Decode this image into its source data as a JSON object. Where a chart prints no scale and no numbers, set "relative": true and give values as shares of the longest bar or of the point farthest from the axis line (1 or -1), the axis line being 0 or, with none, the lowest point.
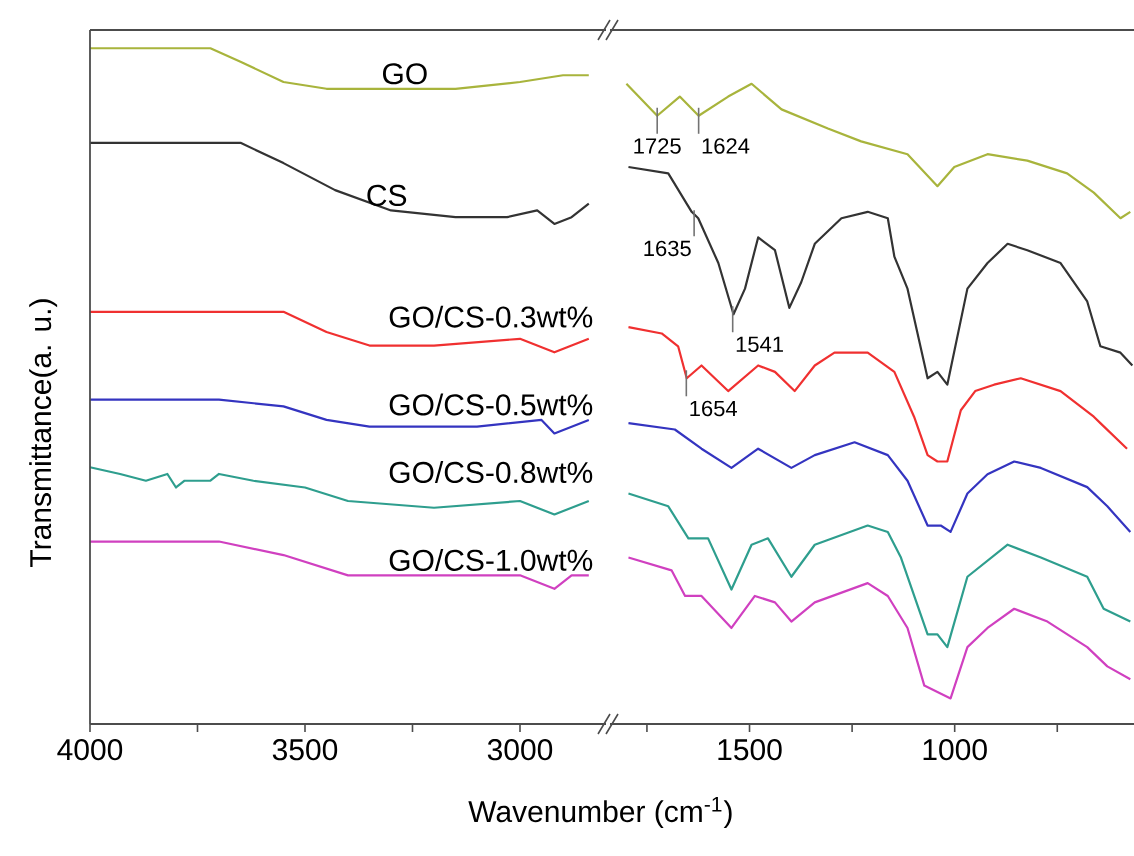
{
  "chart_data": [
    {
      "type": "line",
      "relative": true,
      "tick_labels": "x",
      "ylabel": "Transmittance(a. u.)",
      "xlabel": "Wavenumber (cm$^{-1}$)",
      "xlim": [
        4000,
        2800
      ],
      "xticks": [
        4000,
        {
          "value": 3750,
          "label": null
        },
        3500,
        {
          "value": 3250,
          "label": null
        },
        3000
      ],
      "series": [
        {
          "name": "GO",
          "color": "#a8b43c",
          "x": [
            4000,
            3850,
            3720,
            3650,
            3550,
            3450,
            3300,
            3150,
            3000,
            2900,
            2840
          ],
          "values": [
            1,
            1,
            1,
            0.98,
            0.95,
            0.94,
            0.94,
            0.94,
            0.95,
            0.96,
            0.96
          ]
        },
        {
          "name": "CS",
          "color": "#333333",
          "x": [
            4000,
            3800,
            3650,
            3550,
            3430,
            3300,
            3150,
            3030,
            2960,
            2920,
            2880,
            2840
          ],
          "values": [
            0.86,
            0.86,
            0.86,
            0.83,
            0.79,
            0.76,
            0.75,
            0.75,
            0.76,
            0.74,
            0.75,
            0.77
          ]
        },
        {
          "name": "GO/CS-0.3wt%",
          "color": "#f03030",
          "x": [
            4000,
            3700,
            3550,
            3450,
            3350,
            3200,
            3000,
            2920,
            2880,
            2840
          ],
          "values": [
            0.61,
            0.61,
            0.61,
            0.58,
            0.56,
            0.56,
            0.57,
            0.55,
            0.56,
            0.57
          ]
        },
        {
          "name": "GO/CS-0.5wt%",
          "color": "#3434c0",
          "x": [
            4000,
            3700,
            3550,
            3450,
            3350,
            3100,
            2950,
            2920,
            2880,
            2840
          ],
          "values": [
            0.48,
            0.48,
            0.47,
            0.45,
            0.44,
            0.44,
            0.45,
            0.43,
            0.44,
            0.45
          ]
        },
        {
          "name": "GO/CS-0.8wt%",
          "color": "#2e9e8e",
          "x": [
            4000,
            3930,
            3870,
            3820,
            3800,
            3780,
            3720,
            3700,
            3620,
            3500,
            3400,
            3200,
            3000,
            2920,
            2880,
            2840
          ],
          "values": [
            0.38,
            0.37,
            0.36,
            0.37,
            0.35,
            0.36,
            0.36,
            0.37,
            0.36,
            0.35,
            0.33,
            0.32,
            0.33,
            0.31,
            0.32,
            0.33
          ]
        },
        {
          "name": "GO/CS-1.0wt%",
          "color": "#d040c0",
          "x": [
            4000,
            3700,
            3550,
            3400,
            3200,
            3000,
            2920,
            2880,
            2840
          ],
          "values": [
            0.27,
            0.27,
            0.25,
            0.22,
            0.22,
            0.22,
            0.2,
            0.22,
            0.22
          ]
        }
      ]
    },
    {
      "type": "line",
      "relative": true,
      "tick_labels": "x",
      "xlim": [
        1840,
        563
      ],
      "xticks": [
        {
          "value": 1750,
          "label": null
        },
        1500,
        {
          "value": 1250,
          "label": null
        },
        1000,
        {
          "value": 750,
          "label": null
        }
      ],
      "annotations": [
        {
          "text": "1725",
          "x": 1725,
          "y": 0.95
        },
        {
          "text": "1624",
          "x": 1624,
          "y": 0.95
        },
        {
          "text": "1635",
          "x": 1635,
          "y": 0.79
        },
        {
          "text": "1541",
          "x": 1541,
          "y": 0.64
        },
        {
          "text": "1654",
          "x": 1654,
          "y": 0.54
        }
      ],
      "series": [
        {
          "color": "#a8b43c",
          "x": [
            1800,
            1725,
            1670,
            1624,
            1552,
            1495,
            1422,
            1309,
            1228,
            1115,
            1042,
            1001,
            920,
            823,
            726,
            661,
            596,
            572
          ],
          "values": [
            1,
            0.95,
            0.98,
            0.95,
            0.98,
            1,
            0.96,
            0.93,
            0.91,
            0.89,
            0.84,
            0.87,
            0.89,
            0.88,
            0.86,
            0.83,
            0.79,
            0.8
          ]
        },
        {
          "color": "#333333",
          "x": [
            1795,
            1698,
            1641,
            1625,
            1576,
            1539,
            1511,
            1479,
            1438,
            1403,
            1374,
            1341,
            1276,
            1212,
            1163,
            1147,
            1115,
            1066,
            1042,
            1018,
            969,
            920,
            871,
            823,
            742,
            677,
            645,
            596,
            567
          ],
          "values": [
            0.87,
            0.86,
            0.8,
            0.79,
            0.72,
            0.64,
            0.68,
            0.76,
            0.74,
            0.65,
            0.69,
            0.75,
            0.79,
            0.8,
            0.79,
            0.73,
            0.68,
            0.54,
            0.55,
            0.53,
            0.68,
            0.72,
            0.75,
            0.74,
            0.72,
            0.66,
            0.59,
            0.58,
            0.56
          ]
        },
        {
          "color": "#f03030",
          "x": [
            1795,
            1714,
            1674,
            1653,
            1617,
            1552,
            1479,
            1438,
            1390,
            1341,
            1293,
            1212,
            1147,
            1099,
            1066,
            1042,
            1018,
            985,
            950,
            904,
            839,
            742,
            661,
            645,
            580
          ],
          "values": [
            0.62,
            0.61,
            0.59,
            0.54,
            0.56,
            0.52,
            0.56,
            0.55,
            0.52,
            0.56,
            0.58,
            0.58,
            0.55,
            0.48,
            0.42,
            0.41,
            0.41,
            0.49,
            0.52,
            0.53,
            0.54,
            0.52,
            0.48,
            0.47,
            0.43
          ]
        },
        {
          "color": "#3434c0",
          "x": [
            1795,
            1682,
            1617,
            1544,
            1479,
            1398,
            1341,
            1244,
            1163,
            1115,
            1066,
            1034,
            1010,
            969,
            920,
            855,
            790,
            677,
            628,
            572
          ],
          "values": [
            0.47,
            0.46,
            0.43,
            0.4,
            0.43,
            0.4,
            0.42,
            0.44,
            0.42,
            0.38,
            0.31,
            0.31,
            0.3,
            0.36,
            0.39,
            0.41,
            0.4,
            0.37,
            0.34,
            0.3
          ]
        },
        {
          "color": "#2e9e8e",
          "x": [
            1795,
            1698,
            1649,
            1601,
            1544,
            1495,
            1455,
            1398,
            1341,
            1212,
            1163,
            1131,
            1066,
            1042,
            1018,
            969,
            871,
            790,
            677,
            637,
            572
          ],
          "values": [
            0.36,
            0.34,
            0.29,
            0.29,
            0.21,
            0.28,
            0.29,
            0.23,
            0.28,
            0.31,
            0.3,
            0.26,
            0.14,
            0.14,
            0.12,
            0.23,
            0.28,
            0.26,
            0.23,
            0.18,
            0.16
          ]
        },
        {
          "color": "#d040c0",
          "x": [
            1795,
            1690,
            1657,
            1617,
            1544,
            1487,
            1438,
            1398,
            1341,
            1212,
            1163,
            1115,
            1074,
            1042,
            1010,
            969,
            920,
            855,
            774,
            677,
            628,
            572
          ],
          "values": [
            0.26,
            0.24,
            0.2,
            0.2,
            0.15,
            0.2,
            0.19,
            0.16,
            0.19,
            0.22,
            0.2,
            0.15,
            0.06,
            0.05,
            0.04,
            0.12,
            0.15,
            0.18,
            0.16,
            0.12,
            0.09,
            0.07
          ]
        }
      ]
    }
  ]
}
